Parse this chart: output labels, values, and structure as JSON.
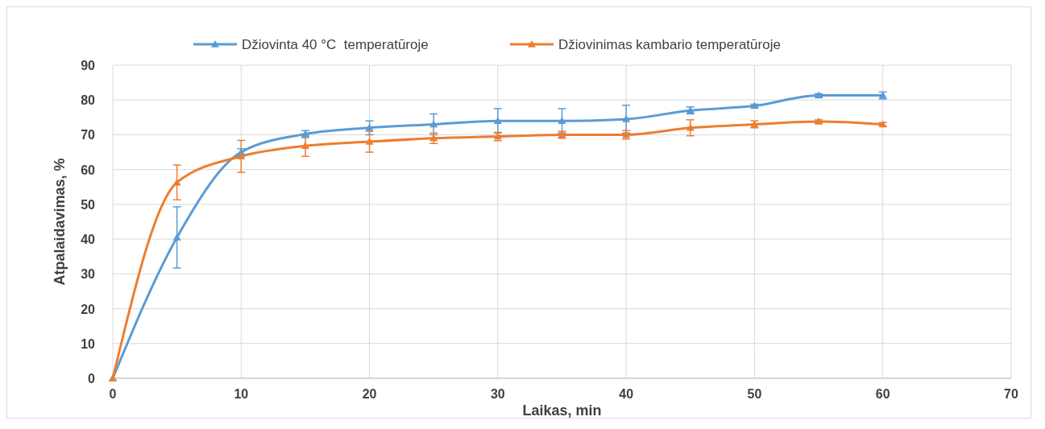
{
  "chart_data": {
    "type": "line",
    "xlabel": "Laikas, min",
    "ylabel": "Atpalaidavimas, %",
    "xlim": [
      0,
      70
    ],
    "xticks": [
      0,
      10,
      20,
      30,
      40,
      50,
      60,
      70
    ],
    "ylim": [
      0,
      90
    ],
    "yticks": [
      0,
      10,
      20,
      30,
      40,
      50,
      60,
      70,
      80,
      90
    ],
    "grid": true,
    "legend": "top",
    "marker": "triangle",
    "line_style": "solid",
    "x": [
      0,
      5,
      10,
      15,
      20,
      25,
      30,
      35,
      40,
      45,
      50,
      55,
      60
    ],
    "series": [
      {
        "name": "Džiovinta 40 °C  temperatūroje",
        "color": "#5b9bd5",
        "values": [
          0,
          40.5,
          65,
          70.2,
          72,
          73,
          74,
          74,
          74.5,
          77,
          78.3,
          81.3,
          81.3
        ],
        "errors": [
          null,
          8.8,
          1,
          1,
          2,
          3,
          3.5,
          3.5,
          4,
          1,
          0.5,
          0.5,
          1
        ]
      },
      {
        "name": "Džiovinimas kambario temperatūroje",
        "color": "#ed7d31",
        "values": [
          0,
          56.3,
          63.8,
          66.8,
          68,
          69,
          69.5,
          70,
          70,
          72,
          73,
          73.8,
          73
        ],
        "errors": [
          null,
          5,
          4.6,
          3,
          3,
          1.5,
          1.2,
          1,
          1.2,
          2.3,
          1,
          0.5,
          0.5
        ]
      }
    ]
  }
}
